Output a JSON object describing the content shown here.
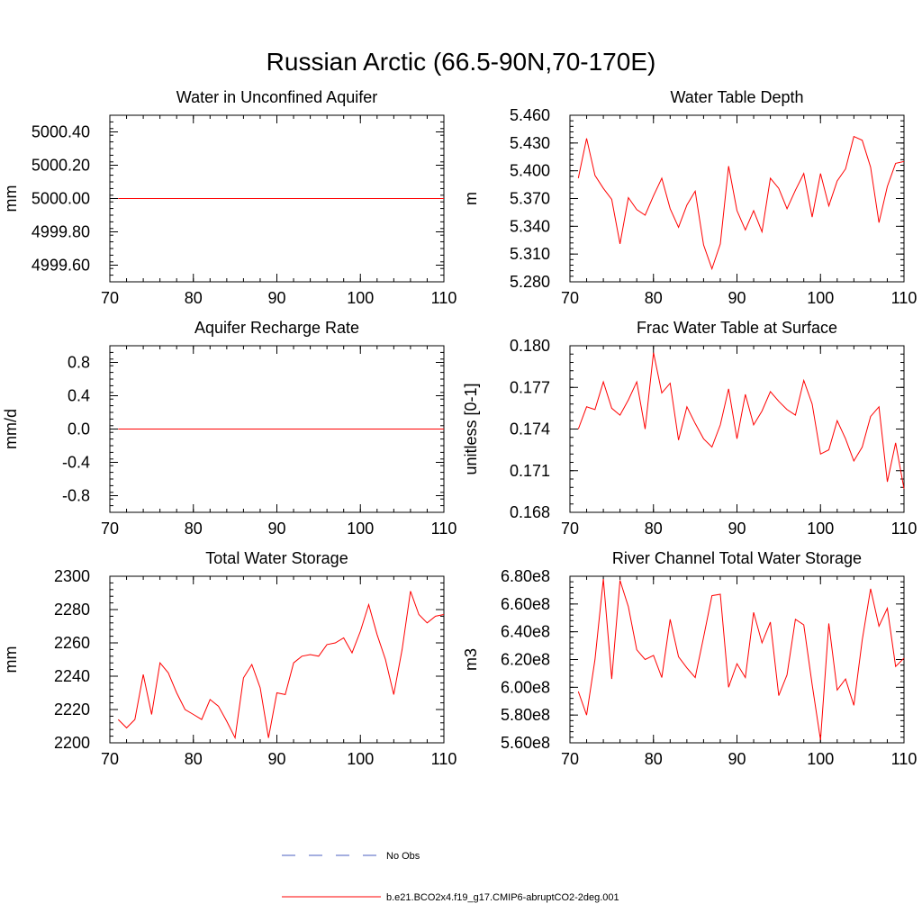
{
  "figure": {
    "title": "Russian Arctic (66.5-90N,70-170E)",
    "series_color": "#ff0000",
    "obs_color": "#4a5fc1"
  },
  "legend": {
    "obs_label": "No Obs",
    "model_label": "b.e21.BCO2x4.f19_g17.CMIP6-abruptCO2-2deg.001"
  },
  "chart_data": [
    {
      "type": "line",
      "title": "Water in Unconfined Aquifer",
      "ylabel": "mm",
      "xlim": [
        70,
        110
      ],
      "ylim": [
        4999.5,
        5000.5
      ],
      "xticks": [
        70,
        80,
        90,
        100,
        110
      ],
      "yticks": [
        4999.6,
        4999.8,
        5000.0,
        5000.2,
        5000.4
      ],
      "ytick_labels": [
        "4999.60",
        "4999.80",
        "5000.00",
        "5000.20",
        "5000.40"
      ],
      "yminor_step": 0.04,
      "x": [
        71,
        72,
        73,
        74,
        75,
        76,
        77,
        78,
        79,
        80,
        81,
        82,
        83,
        84,
        85,
        86,
        87,
        88,
        89,
        90,
        91,
        92,
        93,
        94,
        95,
        96,
        97,
        98,
        99,
        100,
        101,
        102,
        103,
        104,
        105,
        106,
        107,
        108,
        109,
        110
      ],
      "series": [
        {
          "name": "b.e21.BCO2x4.f19_g17.CMIP6-abruptCO2-2deg.001",
          "values": [
            5000,
            5000,
            5000,
            5000,
            5000,
            5000,
            5000,
            5000,
            5000,
            5000,
            5000,
            5000,
            5000,
            5000,
            5000,
            5000,
            5000,
            5000,
            5000,
            5000,
            5000,
            5000,
            5000,
            5000,
            5000,
            5000,
            5000,
            5000,
            5000,
            5000,
            5000,
            5000,
            5000,
            5000,
            5000,
            5000,
            5000,
            5000,
            5000,
            5000
          ]
        }
      ]
    },
    {
      "type": "line",
      "title": "Water Table Depth",
      "ylabel": "m",
      "xlim": [
        70,
        110
      ],
      "ylim": [
        5.28,
        5.46
      ],
      "xticks": [
        70,
        80,
        90,
        100,
        110
      ],
      "yticks": [
        5.28,
        5.31,
        5.34,
        5.37,
        5.4,
        5.43,
        5.46
      ],
      "ytick_labels": [
        "5.280",
        "5.310",
        "5.340",
        "5.370",
        "5.400",
        "5.430",
        "5.460"
      ],
      "yminor_step": 0.006,
      "x": [
        71,
        72,
        73,
        74,
        75,
        76,
        77,
        78,
        79,
        80,
        81,
        82,
        83,
        84,
        85,
        86,
        87,
        88,
        89,
        90,
        91,
        92,
        93,
        94,
        95,
        96,
        97,
        98,
        99,
        100,
        101,
        102,
        103,
        104,
        105,
        106,
        107,
        108,
        109,
        110
      ],
      "series": [
        {
          "name": "b.e21.BCO2x4.f19_g17.CMIP6-abruptCO2-2deg.001",
          "values": [
            5.392,
            5.435,
            5.395,
            5.381,
            5.369,
            5.321,
            5.371,
            5.358,
            5.352,
            5.373,
            5.392,
            5.359,
            5.339,
            5.363,
            5.378,
            5.32,
            5.294,
            5.321,
            5.405,
            5.357,
            5.336,
            5.357,
            5.334,
            5.392,
            5.381,
            5.359,
            5.379,
            5.397,
            5.35,
            5.397,
            5.362,
            5.389,
            5.402,
            5.437,
            5.433,
            5.404,
            5.344,
            5.383,
            5.408,
            5.41
          ]
        }
      ]
    },
    {
      "type": "line",
      "title": "Aquifer Recharge Rate",
      "ylabel": "mm/d",
      "xlim": [
        70,
        110
      ],
      "ylim": [
        -1.0,
        1.0
      ],
      "xticks": [
        70,
        80,
        90,
        100,
        110
      ],
      "yticks": [
        -0.8,
        -0.4,
        0.0,
        0.4,
        0.8
      ],
      "ytick_labels": [
        "-0.8",
        "-0.4",
        "0.0",
        "0.4",
        "0.8"
      ],
      "yminor_step": 0.08,
      "x": [
        71,
        72,
        73,
        74,
        75,
        76,
        77,
        78,
        79,
        80,
        81,
        82,
        83,
        84,
        85,
        86,
        87,
        88,
        89,
        90,
        91,
        92,
        93,
        94,
        95,
        96,
        97,
        98,
        99,
        100,
        101,
        102,
        103,
        104,
        105,
        106,
        107,
        108,
        109,
        110
      ],
      "series": [
        {
          "name": "b.e21.BCO2x4.f19_g17.CMIP6-abruptCO2-2deg.001",
          "values": [
            0,
            0,
            0,
            0,
            0,
            0,
            0,
            0,
            0,
            0,
            0,
            0,
            0,
            0,
            0,
            0,
            0,
            0,
            0,
            0,
            0,
            0,
            0,
            0,
            0,
            0,
            0,
            0,
            0,
            0,
            0,
            0,
            0,
            0,
            0,
            0,
            0,
            0,
            0,
            0
          ]
        }
      ]
    },
    {
      "type": "line",
      "title": "Frac Water Table at Surface",
      "ylabel": "unitless [0-1]",
      "xlim": [
        70,
        110
      ],
      "ylim": [
        0.168,
        0.18
      ],
      "xticks": [
        70,
        80,
        90,
        100,
        110
      ],
      "yticks": [
        0.168,
        0.171,
        0.174,
        0.177,
        0.18
      ],
      "ytick_labels": [
        "0.168",
        "0.171",
        "0.174",
        "0.177",
        "0.180"
      ],
      "yminor_step": 0.0006,
      "x": [
        71,
        72,
        73,
        74,
        75,
        76,
        77,
        78,
        79,
        80,
        81,
        82,
        83,
        84,
        85,
        86,
        87,
        88,
        89,
        90,
        91,
        92,
        93,
        94,
        95,
        96,
        97,
        98,
        99,
        100,
        101,
        102,
        103,
        104,
        105,
        106,
        107,
        108,
        109,
        110
      ],
      "series": [
        {
          "name": "b.e21.BCO2x4.f19_g17.CMIP6-abruptCO2-2deg.001",
          "values": [
            0.174,
            0.1756,
            0.1754,
            0.1774,
            0.1755,
            0.175,
            0.1761,
            0.1774,
            0.174,
            0.1795,
            0.1766,
            0.1773,
            0.1732,
            0.1756,
            0.1744,
            0.1733,
            0.1727,
            0.1743,
            0.1769,
            0.1733,
            0.1765,
            0.1743,
            0.1753,
            0.1767,
            0.176,
            0.1754,
            0.175,
            0.1775,
            0.1758,
            0.1722,
            0.1725,
            0.1746,
            0.1733,
            0.1717,
            0.1727,
            0.1749,
            0.1756,
            0.1702,
            0.173,
            0.1697
          ]
        }
      ]
    },
    {
      "type": "line",
      "title": "Total Water Storage",
      "ylabel": "mm",
      "xlim": [
        70,
        110
      ],
      "ylim": [
        2200,
        2300
      ],
      "xticks": [
        70,
        80,
        90,
        100,
        110
      ],
      "yticks": [
        2200,
        2220,
        2240,
        2260,
        2280,
        2300
      ],
      "ytick_labels": [
        "2200",
        "2220",
        "2240",
        "2260",
        "2280",
        "2300"
      ],
      "yminor_step": 4,
      "x": [
        71,
        72,
        73,
        74,
        75,
        76,
        77,
        78,
        79,
        80,
        81,
        82,
        83,
        84,
        85,
        86,
        87,
        88,
        89,
        90,
        91,
        92,
        93,
        94,
        95,
        96,
        97,
        98,
        99,
        100,
        101,
        102,
        103,
        104,
        105,
        106,
        107,
        108,
        109,
        110
      ],
      "series": [
        {
          "name": "b.e21.BCO2x4.f19_g17.CMIP6-abruptCO2-2deg.001",
          "values": [
            2214,
            2209,
            2214,
            2241,
            2217,
            2248,
            2242,
            2230,
            2220,
            2217,
            2214,
            2226,
            2222,
            2213,
            2203,
            2239,
            2247,
            2233,
            2203,
            2230,
            2229,
            2248,
            2252,
            2253,
            2252,
            2259,
            2260,
            2263,
            2254,
            2267,
            2283,
            2265,
            2250,
            2229,
            2256,
            2291,
            2277,
            2272,
            2276,
            2277
          ]
        }
      ]
    },
    {
      "type": "line",
      "title": "River Channel Total Water Storage",
      "ylabel": "m3",
      "xlim": [
        70,
        110
      ],
      "ylim": [
        560000000,
        680000000
      ],
      "xticks": [
        70,
        80,
        90,
        100,
        110
      ],
      "yticks": [
        560000000,
        580000000,
        600000000,
        620000000,
        640000000,
        660000000,
        680000000
      ],
      "ytick_labels": [
        "5.60e8",
        "5.80e8",
        "6.00e8",
        "6.20e8",
        "6.40e8",
        "6.60e8",
        "6.80e8"
      ],
      "yminor_step": 4000000,
      "x": [
        71,
        72,
        73,
        74,
        75,
        76,
        77,
        78,
        79,
        80,
        81,
        82,
        83,
        84,
        85,
        86,
        87,
        88,
        89,
        90,
        91,
        92,
        93,
        94,
        95,
        96,
        97,
        98,
        99,
        100,
        101,
        102,
        103,
        104,
        105,
        106,
        107,
        108,
        109,
        110
      ],
      "series": [
        {
          "name": "b.e21.BCO2x4.f19_g17.CMIP6-abruptCO2-2deg.001",
          "values": [
            597000000,
            580000000,
            620000000,
            678000000,
            606000000,
            677000000,
            658000000,
            627000000,
            620000000,
            623000000,
            607000000,
            649000000,
            622000000,
            614000000,
            607000000,
            636000000,
            666000000,
            667000000,
            600000000,
            617000000,
            607000000,
            654000000,
            632000000,
            647000000,
            594000000,
            609000000,
            649000000,
            645000000,
            602000000,
            562000000,
            646000000,
            598000000,
            606000000,
            587000000,
            634000000,
            671000000,
            644000000,
            657000000,
            615000000,
            621000000
          ]
        }
      ]
    }
  ]
}
